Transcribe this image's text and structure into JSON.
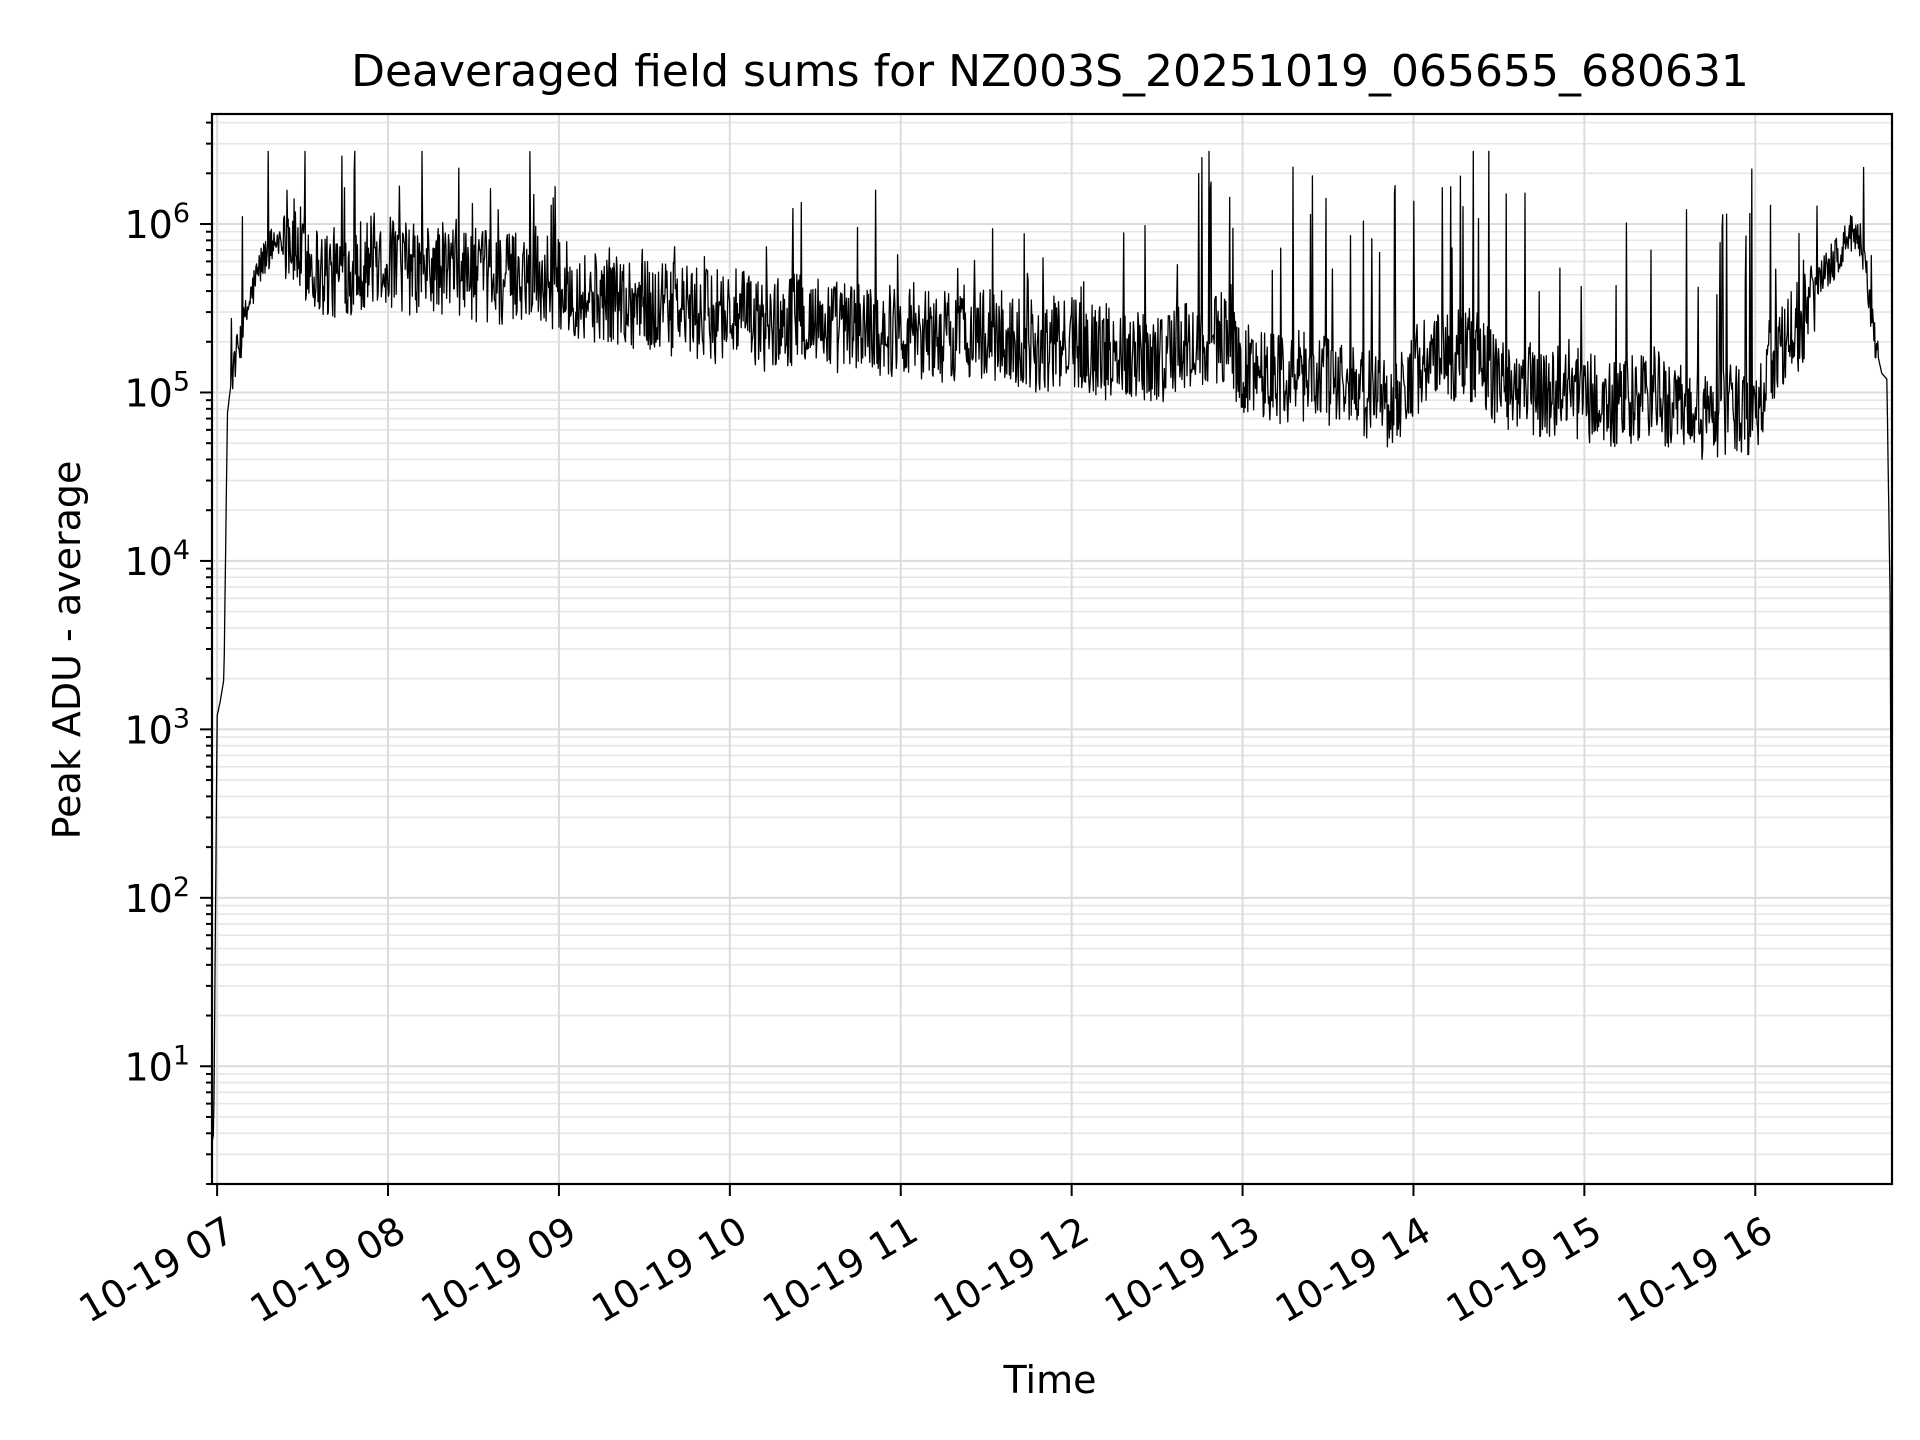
{
  "chart_data": {
    "type": "line",
    "title": "Deaveraged field sums for NZ003S_20251019_065655_680631",
    "xlabel": "Time",
    "ylabel": "Peak ADU - average",
    "yscale": "log",
    "ylim": [
      2,
      4500000
    ],
    "xlim_hours": [
      6.97,
      16.8
    ],
    "x_tick_labels": [
      "10-19 07",
      "10-19 08",
      "10-19 09",
      "10-19 10",
      "10-19 11",
      "10-19 12",
      "10-19 13",
      "10-19 14",
      "10-19 15",
      "10-19 16"
    ],
    "x_tick_hours": [
      7,
      8,
      9,
      10,
      11,
      12,
      13,
      14,
      15,
      16
    ],
    "y_tick_exponents": [
      1,
      2,
      3,
      4,
      5,
      6
    ],
    "y_tick_base": "10",
    "grid": true,
    "line_color": "#000000",
    "series": [
      {
        "name": "Peak ADU - average",
        "x_hours": [
          6.97,
          6.98,
          7.0,
          7.02,
          7.04,
          7.06,
          7.08,
          7.1,
          7.13,
          7.16,
          7.2,
          7.25,
          7.3,
          7.35,
          7.4,
          7.45,
          7.5,
          7.55,
          7.6,
          7.7,
          7.8,
          7.9,
          8.0,
          8.1,
          8.2,
          8.3,
          8.4,
          8.5,
          8.6,
          8.7,
          8.8,
          8.9,
          9.0,
          9.1,
          9.2,
          9.3,
          9.4,
          9.5,
          9.6,
          9.7,
          9.8,
          9.9,
          10.0,
          10.1,
          10.2,
          10.3,
          10.4,
          10.5,
          10.6,
          10.7,
          10.8,
          10.9,
          11.0,
          11.1,
          11.2,
          11.3,
          11.4,
          11.5,
          11.6,
          11.7,
          11.8,
          11.9,
          12.0,
          12.1,
          12.2,
          12.3,
          12.4,
          12.5,
          12.6,
          12.7,
          12.8,
          12.9,
          13.0,
          13.1,
          13.2,
          13.3,
          13.4,
          13.5,
          13.6,
          13.7,
          13.8,
          13.9,
          14.0,
          14.1,
          14.2,
          14.3,
          14.4,
          14.5,
          14.6,
          14.7,
          14.8,
          14.9,
          15.0,
          15.1,
          15.2,
          15.3,
          15.4,
          15.5,
          15.6,
          15.7,
          15.8,
          15.9,
          16.0,
          16.1,
          16.2,
          16.3,
          16.4,
          16.5,
          16.55,
          16.6,
          16.63,
          16.66,
          16.7,
          16.74,
          16.77,
          16.79,
          16.8
        ],
        "y_values": [
          3.5,
          4,
          1200,
          1500,
          2000,
          75000,
          110000,
          150000,
          190000,
          260000,
          380000,
          560000,
          700000,
          800000,
          900000,
          750000,
          650000,
          600000,
          520000,
          500000,
          550000,
          620000,
          600000,
          550000,
          520000,
          540000,
          560000,
          500000,
          480000,
          470000,
          520000,
          480000,
          430000,
          400000,
          360000,
          380000,
          350000,
          330000,
          300000,
          320000,
          290000,
          280000,
          300000,
          270000,
          250000,
          260000,
          280000,
          270000,
          250000,
          240000,
          250000,
          230000,
          240000,
          230000,
          220000,
          210000,
          230000,
          220000,
          210000,
          200000,
          190000,
          180000,
          200000,
          190000,
          170000,
          180000,
          170000,
          160000,
          180000,
          190000,
          200000,
          210000,
          130000,
          140000,
          125000,
          120000,
          130000,
          120000,
          110000,
          100000,
          95000,
          85000,
          140000,
          150000,
          160000,
          170000,
          160000,
          110000,
          115000,
          105000,
          100000,
          110000,
          95000,
          85000,
          80000,
          90000,
          100000,
          85000,
          75000,
          70000,
          75000,
          80000,
          80000,
          160000,
          200000,
          300000,
          500000,
          700000,
          850000,
          900000,
          700000,
          400000,
          200000,
          130000,
          120000,
          5000,
          3.5
        ]
      }
    ]
  }
}
